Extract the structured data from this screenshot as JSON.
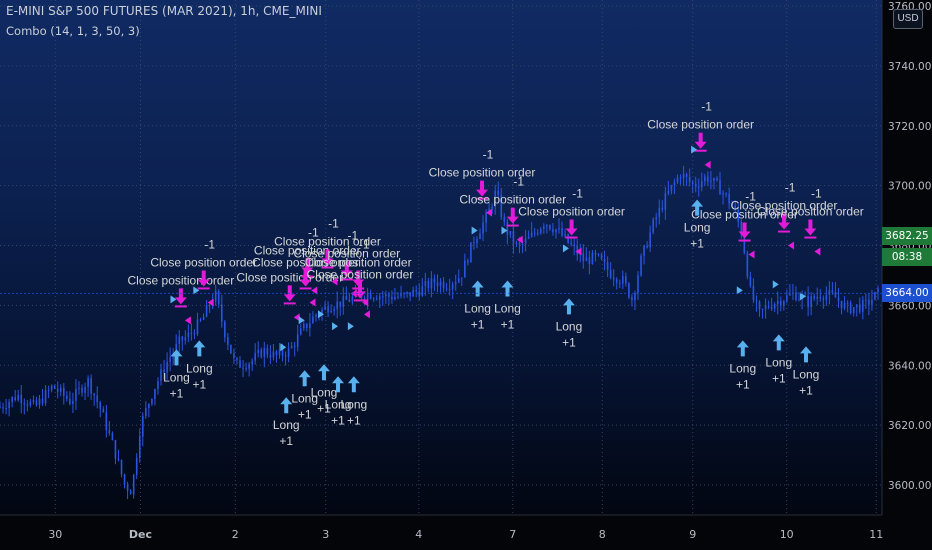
{
  "header": {
    "title": "E-MINI S&P 500 FUTURES (MAR 2021), 1h, CME_MINI",
    "indicator": "Combo (14, 1, 3, 50, 3)"
  },
  "currency": "USD",
  "price_tags": {
    "price_a": "3682.25",
    "timer": "08:38",
    "price_b": "3664.00"
  },
  "colors": {
    "candle": "#2b55e0",
    "long_arrow": "#58b1ee",
    "close_arrow": "#e31bd8",
    "label": "#d5d6d8",
    "flag_blue": "#58b1ee",
    "flag_magenta": "#e31bd8",
    "tag_green": "#1f7a38",
    "tag_blue": "#1d4fd1"
  },
  "chart_data": {
    "type": "candlestick",
    "x_labels": [
      {
        "label": "30",
        "pos": 0.063
      },
      {
        "label": "Dec",
        "pos": 0.16
      },
      {
        "label": "2",
        "pos": 0.268
      },
      {
        "label": "3",
        "pos": 0.371
      },
      {
        "label": "4",
        "pos": 0.477
      },
      {
        "label": "7",
        "pos": 0.584
      },
      {
        "label": "8",
        "pos": 0.686
      },
      {
        "label": "9",
        "pos": 0.789
      },
      {
        "label": "10",
        "pos": 0.896
      },
      {
        "label": "11",
        "pos": 0.998
      }
    ],
    "ylim": [
      3590,
      3762
    ],
    "y_ticks": [
      3600,
      3620,
      3640,
      3660,
      3680,
      3700,
      3720,
      3740,
      3760
    ],
    "series": [
      {
        "t": 0.0,
        "v": 3626
      },
      {
        "t": 0.02,
        "v": 3630
      },
      {
        "t": 0.04,
        "v": 3626
      },
      {
        "t": 0.06,
        "v": 3633
      },
      {
        "t": 0.08,
        "v": 3628
      },
      {
        "t": 0.1,
        "v": 3635
      },
      {
        "t": 0.115,
        "v": 3625
      },
      {
        "t": 0.13,
        "v": 3612
      },
      {
        "t": 0.142,
        "v": 3600
      },
      {
        "t": 0.15,
        "v": 3598
      },
      {
        "t": 0.16,
        "v": 3620
      },
      {
        "t": 0.175,
        "v": 3632
      },
      {
        "t": 0.19,
        "v": 3641
      },
      {
        "t": 0.205,
        "v": 3648
      },
      {
        "t": 0.215,
        "v": 3650
      },
      {
        "t": 0.23,
        "v": 3655
      },
      {
        "t": 0.245,
        "v": 3664
      },
      {
        "t": 0.255,
        "v": 3652
      },
      {
        "t": 0.268,
        "v": 3640
      },
      {
        "t": 0.285,
        "v": 3641
      },
      {
        "t": 0.3,
        "v": 3645
      },
      {
        "t": 0.315,
        "v": 3643
      },
      {
        "t": 0.33,
        "v": 3645
      },
      {
        "t": 0.345,
        "v": 3652
      },
      {
        "t": 0.36,
        "v": 3657
      },
      {
        "t": 0.375,
        "v": 3660
      },
      {
        "t": 0.39,
        "v": 3661
      },
      {
        "t": 0.405,
        "v": 3663
      },
      {
        "t": 0.42,
        "v": 3664
      },
      {
        "t": 0.44,
        "v": 3663
      },
      {
        "t": 0.46,
        "v": 3663
      },
      {
        "t": 0.477,
        "v": 3665
      },
      {
        "t": 0.495,
        "v": 3668
      },
      {
        "t": 0.51,
        "v": 3667
      },
      {
        "t": 0.525,
        "v": 3670
      },
      {
        "t": 0.54,
        "v": 3682
      },
      {
        "t": 0.555,
        "v": 3690
      },
      {
        "t": 0.565,
        "v": 3698
      },
      {
        "t": 0.575,
        "v": 3686
      },
      {
        "t": 0.59,
        "v": 3679
      },
      {
        "t": 0.605,
        "v": 3683
      },
      {
        "t": 0.62,
        "v": 3688
      },
      {
        "t": 0.635,
        "v": 3685
      },
      {
        "t": 0.65,
        "v": 3680
      },
      {
        "t": 0.665,
        "v": 3675
      },
      {
        "t": 0.68,
        "v": 3676
      },
      {
        "t": 0.695,
        "v": 3671
      },
      {
        "t": 0.71,
        "v": 3668
      },
      {
        "t": 0.72,
        "v": 3662
      },
      {
        "t": 0.73,
        "v": 3675
      },
      {
        "t": 0.745,
        "v": 3688
      },
      {
        "t": 0.76,
        "v": 3697
      },
      {
        "t": 0.775,
        "v": 3704
      },
      {
        "t": 0.79,
        "v": 3700
      },
      {
        "t": 0.805,
        "v": 3703
      },
      {
        "t": 0.82,
        "v": 3699
      },
      {
        "t": 0.835,
        "v": 3693
      },
      {
        "t": 0.845,
        "v": 3684
      },
      {
        "t": 0.855,
        "v": 3664
      },
      {
        "t": 0.865,
        "v": 3657
      },
      {
        "t": 0.875,
        "v": 3660
      },
      {
        "t": 0.89,
        "v": 3662
      },
      {
        "t": 0.905,
        "v": 3664
      },
      {
        "t": 0.92,
        "v": 3661
      },
      {
        "t": 0.935,
        "v": 3664
      },
      {
        "t": 0.95,
        "v": 3663
      },
      {
        "t": 0.965,
        "v": 3659
      },
      {
        "t": 0.985,
        "v": 3660
      },
      {
        "t": 1.0,
        "v": 3664
      }
    ],
    "annotations": [
      {
        "label": "Close position order",
        "qty": "",
        "x": 0.206,
        "y": 3661
      },
      {
        "label": "Close position order",
        "qty": "-1",
        "x": 0.232,
        "y": 3667
      },
      {
        "label": "Long",
        "qty": "+1",
        "x": 0.201,
        "y": 3646
      },
      {
        "label": "Long",
        "qty": "+1",
        "x": 0.227,
        "y": 3649
      },
      {
        "label": "Close position order",
        "qty": "",
        "x": 0.33,
        "y": 3662
      },
      {
        "label": "Close position order",
        "qty": "",
        "x": 0.348,
        "y": 3667
      },
      {
        "label": "Close position order",
        "qty": "-1",
        "x": 0.35,
        "y": 3671
      },
      {
        "label": "Close position order",
        "qty": "-1",
        "x": 0.373,
        "y": 3674
      },
      {
        "label": "Close position order",
        "qty": "-1",
        "x": 0.395,
        "y": 3670
      },
      {
        "label": "Close position order",
        "qty": "-1",
        "x": 0.408,
        "y": 3667
      },
      {
        "label": "Close position order",
        "qty": "",
        "x": 0.41,
        "y": 3663
      },
      {
        "label": "Long",
        "qty": "+1",
        "x": 0.326,
        "y": 3630
      },
      {
        "label": "Long",
        "qty": "+1",
        "x": 0.347,
        "y": 3639
      },
      {
        "label": "Long",
        "qty": "+1",
        "x": 0.369,
        "y": 3641
      },
      {
        "label": "Long",
        "qty": "+1",
        "x": 0.385,
        "y": 3637
      },
      {
        "label": "Long",
        "qty": "+1",
        "x": 0.403,
        "y": 3637
      },
      {
        "label": "Close position order",
        "qty": "-1",
        "x": 0.549,
        "y": 3697
      },
      {
        "label": "Close position order",
        "qty": "-1",
        "x": 0.584,
        "y": 3688
      },
      {
        "label": "Close position order",
        "qty": "-1",
        "x": 0.651,
        "y": 3684
      },
      {
        "label": "Long",
        "qty": "+1",
        "x": 0.544,
        "y": 3669
      },
      {
        "label": "Long",
        "qty": "+1",
        "x": 0.578,
        "y": 3669
      },
      {
        "label": "Long",
        "qty": "+1",
        "x": 0.648,
        "y": 3663
      },
      {
        "label": "Close position order",
        "qty": "-1",
        "x": 0.798,
        "y": 3713
      },
      {
        "label": "Close position order",
        "qty": "-1",
        "x": 0.848,
        "y": 3683
      },
      {
        "label": "Close position order",
        "qty": "-1",
        "x": 0.893,
        "y": 3686
      },
      {
        "label": "Close position order",
        "qty": "-1",
        "x": 0.923,
        "y": 3684
      },
      {
        "label": "Long",
        "qty": "+1",
        "x": 0.794,
        "y": 3696
      },
      {
        "label": "Long",
        "qty": "+1",
        "x": 0.846,
        "y": 3649
      },
      {
        "label": "Long",
        "qty": "+1",
        "x": 0.887,
        "y": 3651
      },
      {
        "label": "Long",
        "qty": "+1",
        "x": 0.918,
        "y": 3647
      }
    ]
  }
}
